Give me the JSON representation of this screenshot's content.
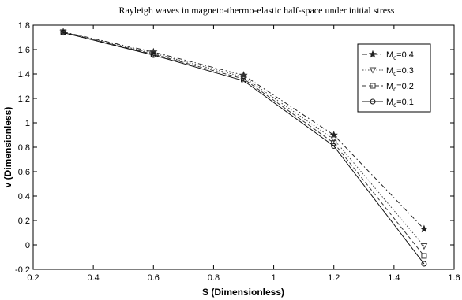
{
  "chart_data": {
    "type": "line",
    "title": "Rayleigh waves in magneto-thermo-elastic half-space under initial stress",
    "xlabel": "S (Dimensionless)",
    "ylabel": "v (Dimensionless)",
    "xlim": [
      0.2,
      1.6
    ],
    "ylim": [
      -0.2,
      1.8
    ],
    "x_ticks": [
      "0.2",
      "0.4",
      "0.6",
      "0.8",
      "1",
      "1.2",
      "1.4",
      "1.6"
    ],
    "y_ticks": [
      "-0.2",
      "0",
      "0.2",
      "0.4",
      "0.6",
      "0.8",
      "1",
      "1.2",
      "1.4",
      "1.6",
      "1.8"
    ],
    "grid": false,
    "legend_position": "top-right",
    "x": [
      0.3,
      0.6,
      0.9,
      1.2,
      1.5
    ],
    "series": [
      {
        "name": "M",
        "name_sub": "c",
        "name_suffix": "=0.4",
        "marker": "star",
        "dash": "dash-dot",
        "color": "#222222",
        "values": [
          1.745,
          1.58,
          1.39,
          0.9,
          0.13
        ]
      },
      {
        "name": "M",
        "name_sub": "c",
        "name_suffix": "=0.3",
        "marker": "triangle-down",
        "dash": "dotted",
        "color": "#444444",
        "values": [
          1.743,
          1.57,
          1.375,
          0.865,
          -0.01
        ]
      },
      {
        "name": "M",
        "name_sub": "c",
        "name_suffix": "=0.2",
        "marker": "square",
        "dash": "dashed",
        "color": "#333333",
        "values": [
          1.741,
          1.562,
          1.36,
          0.835,
          -0.09
        ]
      },
      {
        "name": "M",
        "name_sub": "c",
        "name_suffix": "=0.1",
        "marker": "circle",
        "dash": "solid",
        "color": "#111111",
        "values": [
          1.739,
          1.555,
          1.345,
          0.81,
          -0.155
        ]
      }
    ]
  }
}
